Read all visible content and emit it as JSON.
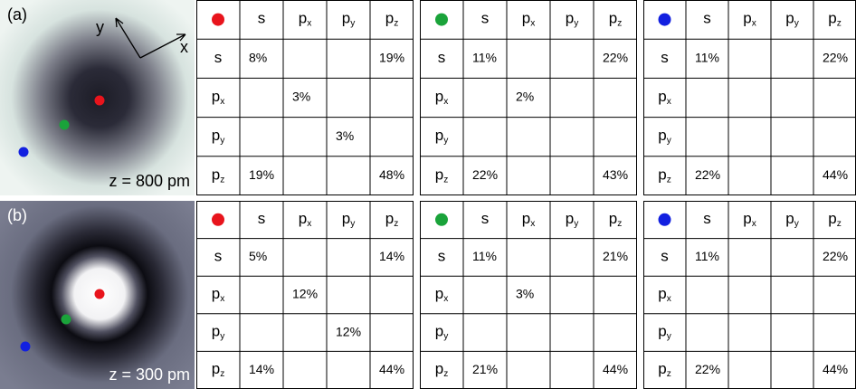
{
  "atoms": [
    {
      "color": "#e8141c"
    },
    {
      "color": "#1aa33a"
    },
    {
      "color": "#1220e0"
    }
  ],
  "orbitals": [
    {
      "text": "s"
    },
    {
      "text": "p",
      "sub": "x"
    },
    {
      "text": "p",
      "sub": "y"
    },
    {
      "text": "p",
      "sub": "z"
    }
  ],
  "panels": [
    {
      "label": "(a)",
      "axes": {
        "y": "y",
        "x": "x"
      },
      "z": "z = 800 pm",
      "tables": [
        {
          "cells": [
            [
              "8%",
              null,
              null,
              "19%"
            ],
            [
              null,
              "3%",
              null,
              null
            ],
            [
              null,
              null,
              "3%",
              null
            ],
            [
              "19%",
              null,
              null,
              "48%"
            ]
          ]
        },
        {
          "cells": [
            [
              "11%",
              null,
              null,
              "22%"
            ],
            [
              null,
              "2%",
              null,
              null
            ],
            [
              null,
              null,
              null,
              null
            ],
            [
              "22%",
              null,
              null,
              "43%"
            ]
          ]
        },
        {
          "cells": [
            [
              "11%",
              null,
              null,
              "22%"
            ],
            [
              null,
              null,
              null,
              null
            ],
            [
              null,
              null,
              null,
              null
            ],
            [
              "22%",
              null,
              null,
              "44%"
            ]
          ]
        }
      ]
    },
    {
      "label": "(b)",
      "z": "z = 300 pm",
      "tables": [
        {
          "cells": [
            [
              "5%",
              null,
              null,
              "14%"
            ],
            [
              null,
              "12%",
              null,
              null
            ],
            [
              null,
              null,
              "12%",
              null
            ],
            [
              "14%",
              null,
              null,
              "44%"
            ]
          ]
        },
        {
          "cells": [
            [
              "11%",
              null,
              null,
              "21%"
            ],
            [
              null,
              "3%",
              null,
              null
            ],
            [
              null,
              null,
              null,
              null
            ],
            [
              "21%",
              null,
              null,
              "44%"
            ]
          ]
        },
        {
          "cells": [
            [
              "11%",
              null,
              null,
              "22%"
            ],
            [
              null,
              null,
              null,
              null
            ],
            [
              null,
              null,
              null,
              null
            ],
            [
              "22%",
              null,
              null,
              "44%"
            ]
          ]
        }
      ]
    }
  ]
}
